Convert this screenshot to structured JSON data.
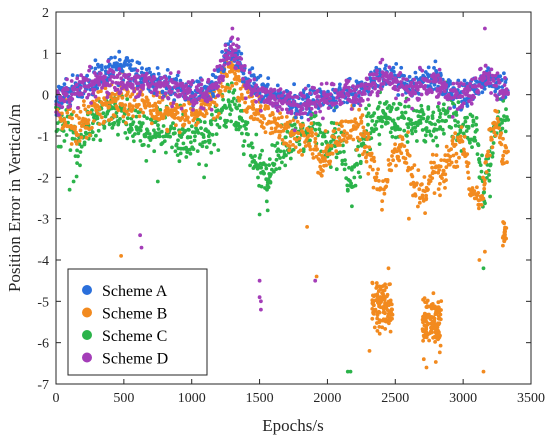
{
  "chart_data": {
    "type": "scatter",
    "title": "",
    "xlabel": "Epochs/s",
    "ylabel": "Position Error in Vertical/m",
    "xlim": [
      0,
      3500
    ],
    "ylim": [
      -7,
      2
    ],
    "xticks": [
      0,
      500,
      1000,
      1500,
      2000,
      2500,
      3000,
      3500
    ],
    "yticks": [
      2,
      1,
      0,
      -1,
      -2,
      -3,
      -4,
      -5,
      -6,
      -7
    ],
    "x_tick_labels": [
      "0",
      "500",
      "1000",
      "1500",
      "2000",
      "2500",
      "3000",
      "3500"
    ],
    "y_tick_labels": [
      "2",
      "1",
      "0",
      "-1",
      "-2",
      "-3",
      "-4",
      "-5",
      "-6",
      "-7"
    ],
    "grid": false,
    "legend_position": "bottom-left",
    "draw_order": [
      "Scheme C",
      "Scheme B",
      "Scheme A",
      "Scheme D"
    ],
    "series": [
      {
        "name": "Scheme A",
        "color": "#2a6fdb",
        "segments": [
          [
            0,
            -0.1
          ],
          [
            100,
            0.1
          ],
          [
            200,
            0.2
          ],
          [
            300,
            0.4
          ],
          [
            400,
            0.6
          ],
          [
            450,
            0.7
          ],
          [
            500,
            0.7
          ],
          [
            560,
            0.6
          ],
          [
            650,
            0.4
          ],
          [
            750,
            0.3
          ],
          [
            850,
            0.2
          ],
          [
            1000,
            0.1
          ],
          [
            1100,
            0.1
          ],
          [
            1200,
            0.4
          ],
          [
            1250,
            0.9
          ],
          [
            1300,
            1.0
          ],
          [
            1350,
            0.8
          ],
          [
            1400,
            0.4
          ],
          [
            1500,
            0.1
          ],
          [
            1600,
            0.0
          ],
          [
            1700,
            -0.1
          ],
          [
            1800,
            -0.2
          ],
          [
            1900,
            0.0
          ],
          [
            2000,
            -0.1
          ],
          [
            2100,
            0.0
          ],
          [
            2200,
            0.1
          ],
          [
            2300,
            0.2
          ],
          [
            2400,
            0.5
          ],
          [
            2500,
            0.4
          ],
          [
            2600,
            0.2
          ],
          [
            2700,
            0.3
          ],
          [
            2800,
            0.4
          ],
          [
            2900,
            0.1
          ],
          [
            3000,
            0.0
          ],
          [
            3100,
            0.2
          ],
          [
            3200,
            0.4
          ],
          [
            3300,
            0.2
          ]
        ]
      },
      {
        "name": "Scheme B",
        "color": "#f28a1f",
        "segments": [
          [
            0,
            -0.4
          ],
          [
            100,
            -0.6
          ],
          [
            150,
            -0.9
          ],
          [
            200,
            -0.6
          ],
          [
            300,
            -0.3
          ],
          [
            400,
            -0.2
          ],
          [
            500,
            -0.1
          ],
          [
            600,
            -0.2
          ],
          [
            700,
            -0.3
          ],
          [
            800,
            -0.4
          ],
          [
            900,
            -0.5
          ],
          [
            1000,
            -0.4
          ],
          [
            1100,
            -0.3
          ],
          [
            1200,
            0.0
          ],
          [
            1250,
            0.4
          ],
          [
            1300,
            0.5
          ],
          [
            1350,
            0.3
          ],
          [
            1400,
            -0.2
          ],
          [
            1500,
            -0.4
          ],
          [
            1600,
            -0.7
          ],
          [
            1700,
            -0.9
          ],
          [
            1800,
            -1.0
          ],
          [
            1900,
            -1.2
          ],
          [
            1950,
            -1.8
          ],
          [
            2000,
            -1.3
          ],
          [
            2100,
            -1.0
          ],
          [
            2200,
            -0.6
          ],
          [
            2300,
            -1.2
          ],
          [
            2350,
            -2.0
          ],
          [
            2400,
            -2.5
          ],
          [
            2450,
            -2.0
          ],
          [
            2500,
            -1.3
          ],
          [
            2600,
            -1.5
          ],
          [
            2650,
            -2.2
          ],
          [
            2700,
            -2.5
          ],
          [
            2750,
            -2.1
          ],
          [
            2800,
            -1.7
          ],
          [
            2850,
            -2.0
          ],
          [
            2900,
            -1.4
          ],
          [
            3000,
            -1.2
          ],
          [
            3050,
            -2.0
          ],
          [
            3100,
            -2.6
          ],
          [
            3150,
            -2.2
          ],
          [
            3200,
            -1.0
          ],
          [
            3250,
            -0.6
          ],
          [
            3300,
            -1.5
          ]
        ],
        "clusters": [
          {
            "x_range": [
              2330,
              2480
            ],
            "y_center": -5.1,
            "y_spread": 0.6,
            "count": 120
          },
          {
            "x_range": [
              2700,
              2840
            ],
            "y_center": -5.5,
            "y_spread": 0.7,
            "count": 130
          },
          {
            "x_range": [
              3290,
              3320
            ],
            "y_center": -3.4,
            "y_spread": 0.3,
            "count": 20
          }
        ],
        "outliers": [
          [
            1850,
            -3.2
          ],
          [
            1920,
            -4.4
          ],
          [
            2450,
            -4.2
          ],
          [
            2310,
            -6.2
          ],
          [
            3150,
            -6.7
          ],
          [
            2600,
            -3.0
          ],
          [
            3120,
            -4.0
          ],
          [
            3160,
            -3.8
          ],
          [
            480,
            -3.9
          ],
          [
            2710,
            -6.4
          ],
          [
            2730,
            -6.6
          ]
        ]
      },
      {
        "name": "Scheme C",
        "color": "#2bb34a",
        "segments": [
          [
            0,
            -0.6
          ],
          [
            100,
            -0.7
          ],
          [
            150,
            -1.3
          ],
          [
            200,
            -0.9
          ],
          [
            300,
            -0.5
          ],
          [
            400,
            -0.4
          ],
          [
            500,
            -0.6
          ],
          [
            600,
            -0.8
          ],
          [
            700,
            -0.9
          ],
          [
            800,
            -1.0
          ],
          [
            900,
            -1.0
          ],
          [
            1000,
            -1.0
          ],
          [
            1100,
            -1.1
          ],
          [
            1200,
            -0.6
          ],
          [
            1250,
            -0.2
          ],
          [
            1300,
            -0.3
          ],
          [
            1400,
            -1.0
          ],
          [
            1500,
            -1.7
          ],
          [
            1550,
            -2.0
          ],
          [
            1600,
            -1.6
          ],
          [
            1700,
            -1.3
          ],
          [
            1800,
            -0.8
          ],
          [
            1900,
            -0.7
          ],
          [
            2000,
            -1.2
          ],
          [
            2100,
            -1.0
          ],
          [
            2150,
            -2.2
          ],
          [
            2200,
            -1.8
          ],
          [
            2300,
            -0.9
          ],
          [
            2400,
            -0.5
          ],
          [
            2500,
            -0.6
          ],
          [
            2600,
            -0.7
          ],
          [
            2700,
            -0.6
          ],
          [
            2800,
            -0.8
          ],
          [
            2900,
            -0.5
          ],
          [
            3000,
            -0.8
          ],
          [
            3100,
            -1.0
          ],
          [
            3150,
            -2.3
          ],
          [
            3200,
            -1.6
          ],
          [
            3250,
            -0.7
          ],
          [
            3300,
            -0.5
          ]
        ],
        "outliers": [
          [
            100,
            -2.3
          ],
          [
            130,
            -2.1
          ],
          [
            750,
            -2.1
          ],
          [
            1500,
            -2.9
          ],
          [
            1560,
            -2.8
          ],
          [
            2150,
            -6.7
          ],
          [
            2170,
            -6.7
          ],
          [
            3150,
            -4.2
          ],
          [
            2180,
            -2.7
          ],
          [
            3120,
            -2.0
          ]
        ]
      },
      {
        "name": "Scheme D",
        "color": "#a43db8",
        "segments": [
          [
            0,
            -0.2
          ],
          [
            100,
            0.0
          ],
          [
            200,
            0.2
          ],
          [
            300,
            0.3
          ],
          [
            400,
            0.4
          ],
          [
            500,
            0.3
          ],
          [
            600,
            0.3
          ],
          [
            700,
            0.3
          ],
          [
            800,
            0.2
          ],
          [
            900,
            0.1
          ],
          [
            1000,
            0.0
          ],
          [
            1100,
            0.0
          ],
          [
            1200,
            0.3
          ],
          [
            1250,
            0.9
          ],
          [
            1300,
            1.1
          ],
          [
            1350,
            0.9
          ],
          [
            1400,
            0.3
          ],
          [
            1500,
            0.0
          ],
          [
            1600,
            -0.1
          ],
          [
            1700,
            -0.2
          ],
          [
            1800,
            -0.3
          ],
          [
            1900,
            -0.2
          ],
          [
            2000,
            -0.1
          ],
          [
            2100,
            0.0
          ],
          [
            2200,
            0.0
          ],
          [
            2300,
            0.2
          ],
          [
            2400,
            0.4
          ],
          [
            2500,
            0.3
          ],
          [
            2600,
            0.1
          ],
          [
            2700,
            0.2
          ],
          [
            2800,
            0.3
          ],
          [
            2900,
            0.0
          ],
          [
            3000,
            -0.1
          ],
          [
            3100,
            0.1
          ],
          [
            3150,
            0.5
          ],
          [
            3200,
            0.4
          ],
          [
            3300,
            0.1
          ]
        ],
        "outliers": [
          [
            620,
            -3.4
          ],
          [
            630,
            -3.7
          ],
          [
            1500,
            -4.5
          ],
          [
            1500,
            -4.9
          ],
          [
            1510,
            -5.0
          ],
          [
            1510,
            -5.2
          ],
          [
            1910,
            -4.5
          ],
          [
            3160,
            1.6
          ],
          [
            1300,
            1.6
          ]
        ]
      }
    ]
  }
}
